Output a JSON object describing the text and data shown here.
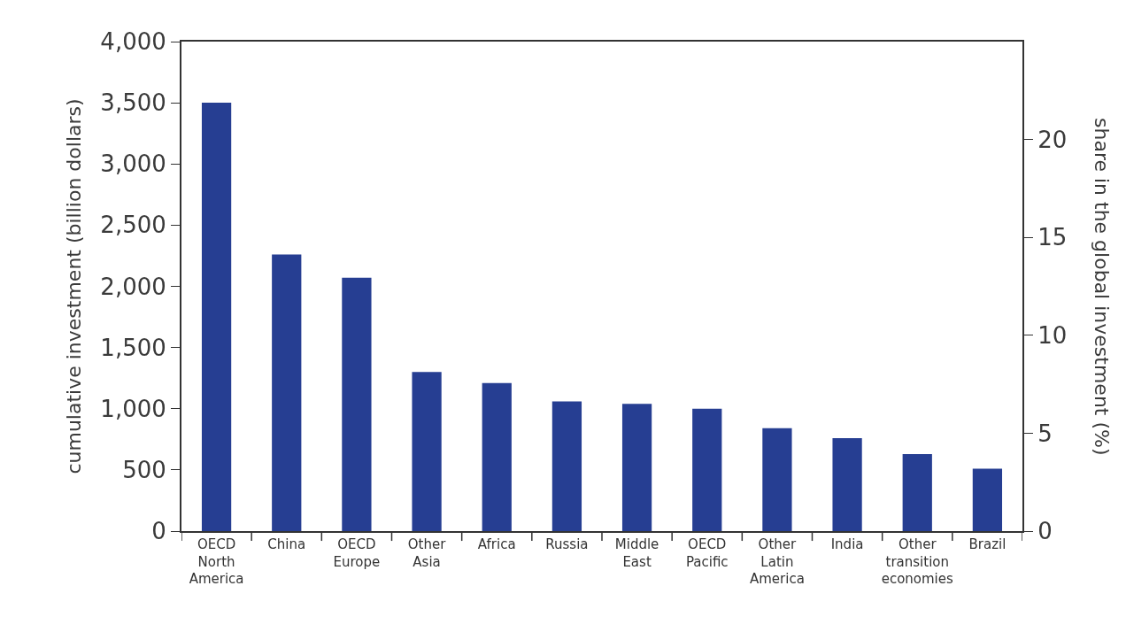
{
  "chart_data": {
    "type": "bar",
    "categories": [
      "OECD\nNorth\nAmerica",
      "China",
      "OECD\nEurope",
      "Other\nAsia",
      "Africa",
      "Russia",
      "Middle\nEast",
      "OECD\nPacific",
      "Other\nLatin\nAmerica",
      "India",
      "Other\ntransition\neconomies",
      "Brazil"
    ],
    "values": [
      3500,
      2260,
      2070,
      1300,
      1210,
      1060,
      1040,
      1000,
      840,
      760,
      630,
      510
    ],
    "color": "#263e92",
    "ylabel": "cumulative investment (billion dollars)",
    "y2label": "share in the global investment (%)",
    "ylim": [
      0,
      4000
    ],
    "yticks": [
      {
        "value": 0,
        "label": "0"
      },
      {
        "value": 500,
        "label": "500"
      },
      {
        "value": 1000,
        "label": "1,000"
      },
      {
        "value": 1500,
        "label": "1,500"
      },
      {
        "value": 2000,
        "label": "2,000"
      },
      {
        "value": 2500,
        "label": "2,500"
      },
      {
        "value": 3000,
        "label": "3,000"
      },
      {
        "value": 3500,
        "label": "3,500"
      },
      {
        "value": 4000,
        "label": "4,000"
      }
    ],
    "y2lim": [
      0,
      25
    ],
    "y2ticks": [
      0,
      5,
      10,
      15,
      20
    ],
    "grid": false
  }
}
